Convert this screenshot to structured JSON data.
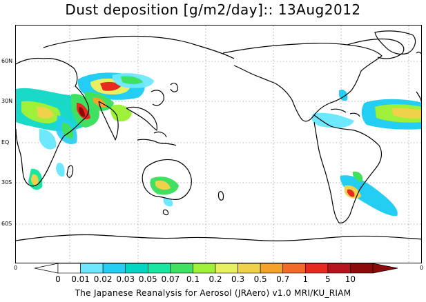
{
  "title": "Dust deposition [g/m2/day]:: 13Aug2012",
  "credit": "The Japanese Reanalysis for Aerosol (JRAero) v1.0 MRI/KU_RIAM",
  "latitude_labels": [
    "60N",
    "30N",
    "EQ",
    "30S",
    "60S"
  ],
  "corner_labels": {
    "left": "0",
    "right": "0"
  },
  "colorbar": {
    "labels": [
      "0",
      "0.01",
      "0.02",
      "0.03",
      "0.05",
      "0.07",
      "0.1",
      "0.2",
      "0.3",
      "0.5",
      "0.7",
      "1",
      "5",
      "10"
    ],
    "colors": [
      "#ffffff",
      "#6ee8ff",
      "#24cdf2",
      "#00d6c2",
      "#19e6a0",
      "#40e060",
      "#9ef038",
      "#e6f060",
      "#f0d24a",
      "#f5a22a",
      "#f26a28",
      "#e62a1e",
      "#b4141e",
      "#8c0a0a"
    ],
    "under_color": "#ffffff",
    "over_color": "#8c0a0a"
  }
}
